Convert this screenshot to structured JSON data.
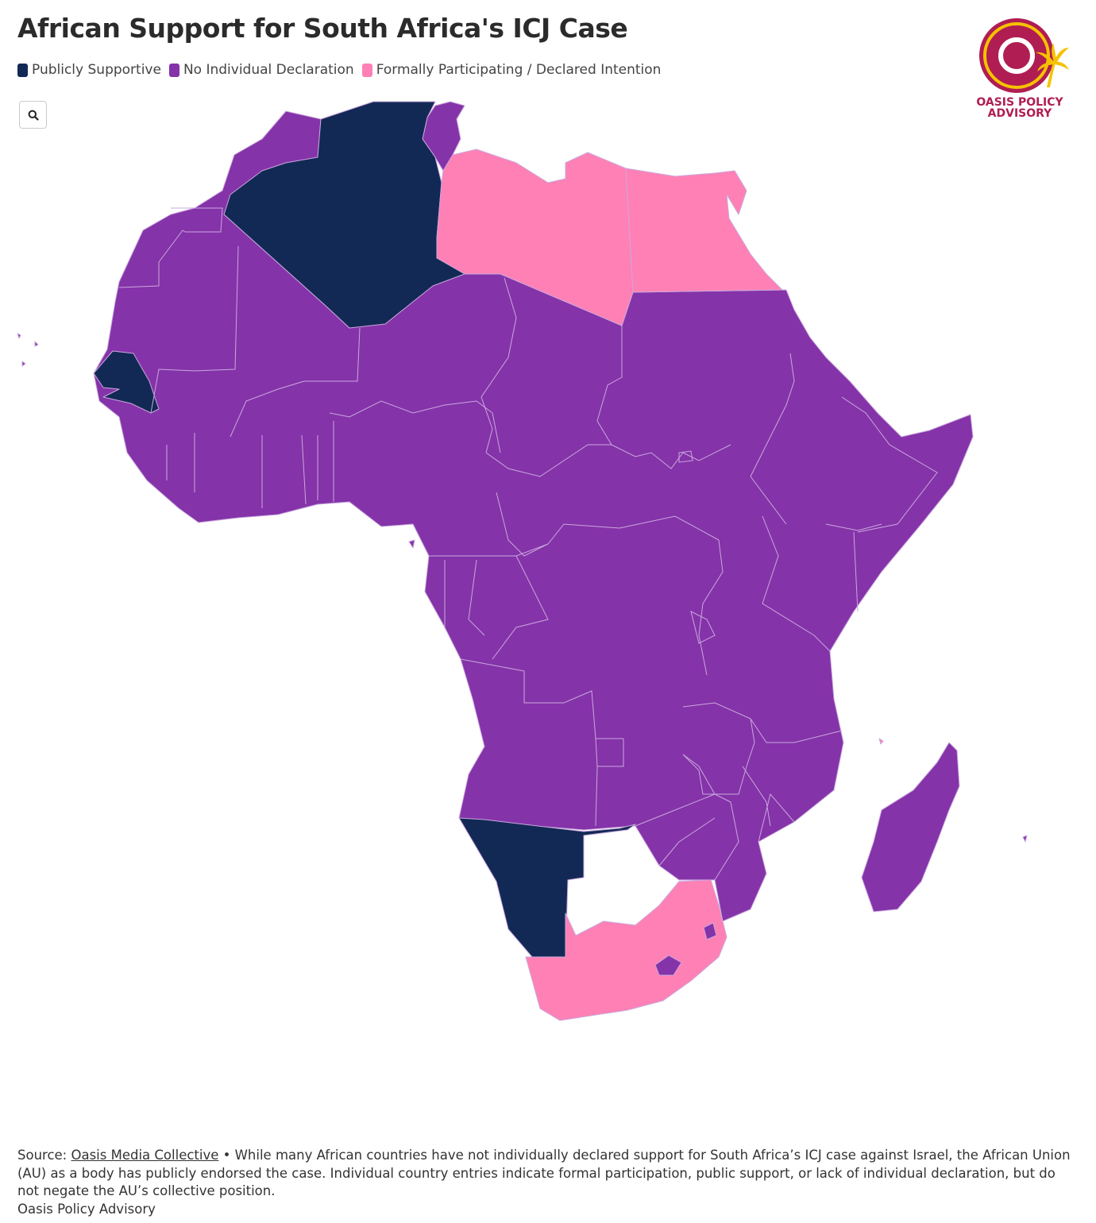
{
  "title": "African Support for South Africa's ICJ Case",
  "legend": [
    {
      "label": "Publicly Supportive",
      "color": "#132955"
    },
    {
      "label": "No Individual Declaration",
      "color": "#8533a9"
    },
    {
      "label": "Formally Participating / Declared Intention",
      "color": "#ff80b5"
    }
  ],
  "colors": {
    "publicly_supportive": "#132955",
    "no_declaration": "#8533a9",
    "formally_participating": "#ff80b5",
    "border": "#c9a8dd",
    "logo": "#b01d52",
    "logo_palm": "#f5c200"
  },
  "search_icon": "search-icon",
  "logo": {
    "line1": "OASIS POLICY",
    "line2": "ADVISORY"
  },
  "map_data": {
    "publicly_supportive": [
      "Algeria",
      "Senegal",
      "Namibia"
    ],
    "formally_participating": [
      "Libya",
      "Egypt",
      "South Africa"
    ]
  },
  "footer": {
    "source_prefix": "Source: ",
    "source_link": "Oasis Media Collective",
    "note": " • While many African countries have not individually declared support for South Africa’s ICJ case against Israel, the African Union (AU) as a body has publicly endorsed the case. Individual country entries indicate formal participation, public support, or lack of individual declaration, but do not negate the AU’s collective position.",
    "org": "Oasis Policy Advisory"
  }
}
